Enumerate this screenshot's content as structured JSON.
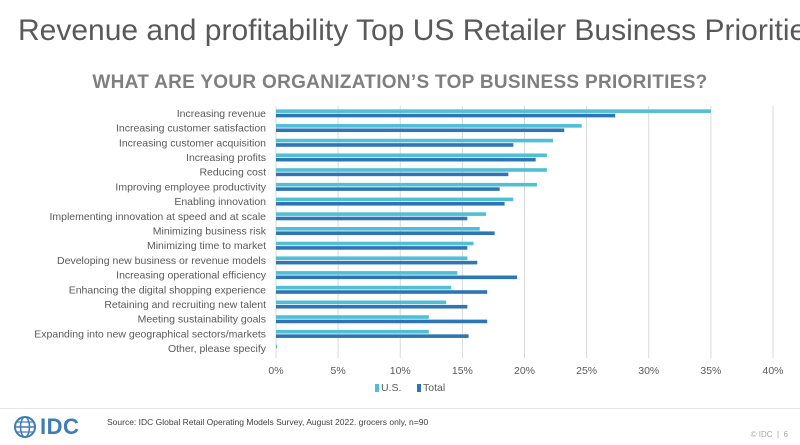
{
  "slide_title": "Revenue and profitability Top US Retailer Business Priorities",
  "footer": {
    "logo_text": "IDC",
    "source": "Source: IDC Global Retail Operating Models Survey, August 2022. grocers only, n=90",
    "copyright": "© IDC",
    "page_number": "6"
  },
  "colors": {
    "us": "#4ebfd4",
    "total": "#2e75b6"
  },
  "chart_data": {
    "type": "bar",
    "orientation": "horizontal",
    "title": "WHAT ARE YOUR ORGANIZATION’S TOP BUSINESS PRIORITIES?",
    "categories": [
      "Increasing revenue",
      "Increasing customer satisfaction",
      "Increasing customer acquisition",
      "Increasing profits",
      "Reducing cost",
      "Improving employee productivity",
      "Enabling innovation",
      "Implementing innovation at speed and at scale",
      "Minimizing business risk",
      "Minimizing time to market",
      "Developing new business or revenue models",
      "Increasing operational efficiency",
      "Enhancing the digital shopping experience",
      "Retaining and recruiting new talent",
      "Meeting sustainability goals",
      "Expanding into new geographical sectors/markets",
      "Other, please specify"
    ],
    "series": [
      {
        "name": "U.S.",
        "values": [
          35.0,
          24.6,
          22.3,
          21.8,
          21.8,
          21.0,
          19.1,
          16.9,
          16.4,
          15.9,
          15.4,
          14.6,
          14.1,
          13.7,
          12.3,
          12.3,
          0.1
        ]
      },
      {
        "name": "Total",
        "values": [
          27.3,
          23.2,
          19.1,
          20.9,
          18.7,
          18.0,
          18.4,
          15.4,
          17.6,
          15.4,
          16.2,
          19.4,
          17.0,
          15.4,
          17.0,
          15.5,
          0.0
        ]
      }
    ],
    "xlim": [
      0,
      40
    ],
    "xticks": [
      0,
      5,
      10,
      15,
      20,
      25,
      30,
      35,
      40
    ],
    "tick_suffix": "%",
    "grid": true,
    "legend_position": "bottom"
  }
}
